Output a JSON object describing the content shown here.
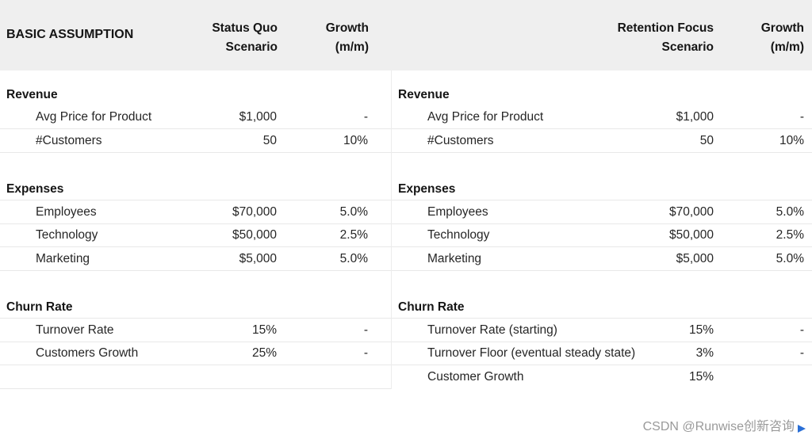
{
  "header": {
    "title": "BASIC ASSUMPTION",
    "col1_line1": "Status Quo",
    "col1_line2": "Scenario",
    "col2_line1": "Growth",
    "col2_line2": "(m/m)",
    "col3_line1": "Retention Focus",
    "col3_line2": "Scenario",
    "col4_line1": "Growth",
    "col4_line2": "(m/m)"
  },
  "left": {
    "revenue": {
      "title": "Revenue",
      "rows": [
        {
          "label": "Avg Price for Product",
          "value": "$1,000",
          "growth": "-"
        },
        {
          "label": "#Customers",
          "value": "50",
          "growth": "10%"
        }
      ]
    },
    "expenses": {
      "title": "Expenses",
      "rows": [
        {
          "label": "Employees",
          "value": "$70,000",
          "growth": "5.0%"
        },
        {
          "label": "Technology",
          "value": "$50,000",
          "growth": "2.5%"
        },
        {
          "label": "Marketing",
          "value": "$5,000",
          "growth": "5.0%"
        }
      ]
    },
    "churn": {
      "title": "Churn Rate",
      "rows": [
        {
          "label": "Turnover Rate",
          "value": "15%",
          "growth": "-"
        },
        {
          "label": "Customers Growth",
          "value": "25%",
          "growth": "-"
        }
      ]
    }
  },
  "right": {
    "revenue": {
      "title": "Revenue",
      "rows": [
        {
          "label": "Avg Price for Product",
          "value": "$1,000",
          "growth": "-"
        },
        {
          "label": "#Customers",
          "value": "50",
          "growth": "10%"
        }
      ]
    },
    "expenses": {
      "title": "Expenses",
      "rows": [
        {
          "label": "Employees",
          "value": "$70,000",
          "growth": "5.0%"
        },
        {
          "label": "Technology",
          "value": "$50,000",
          "growth": "2.5%"
        },
        {
          "label": "Marketing",
          "value": "$5,000",
          "growth": "5.0%"
        }
      ]
    },
    "churn": {
      "title": "Churn Rate",
      "rows": [
        {
          "label": "Turnover Rate (starting)",
          "value": "15%",
          "growth": "-"
        },
        {
          "label": "Turnover Floor (eventual steady state)",
          "value": "3%",
          "growth": "-"
        },
        {
          "label": "Customer Growth",
          "value": "15%",
          "growth": ""
        }
      ]
    }
  },
  "watermark": "CSDN @Runwise创新咨询"
}
